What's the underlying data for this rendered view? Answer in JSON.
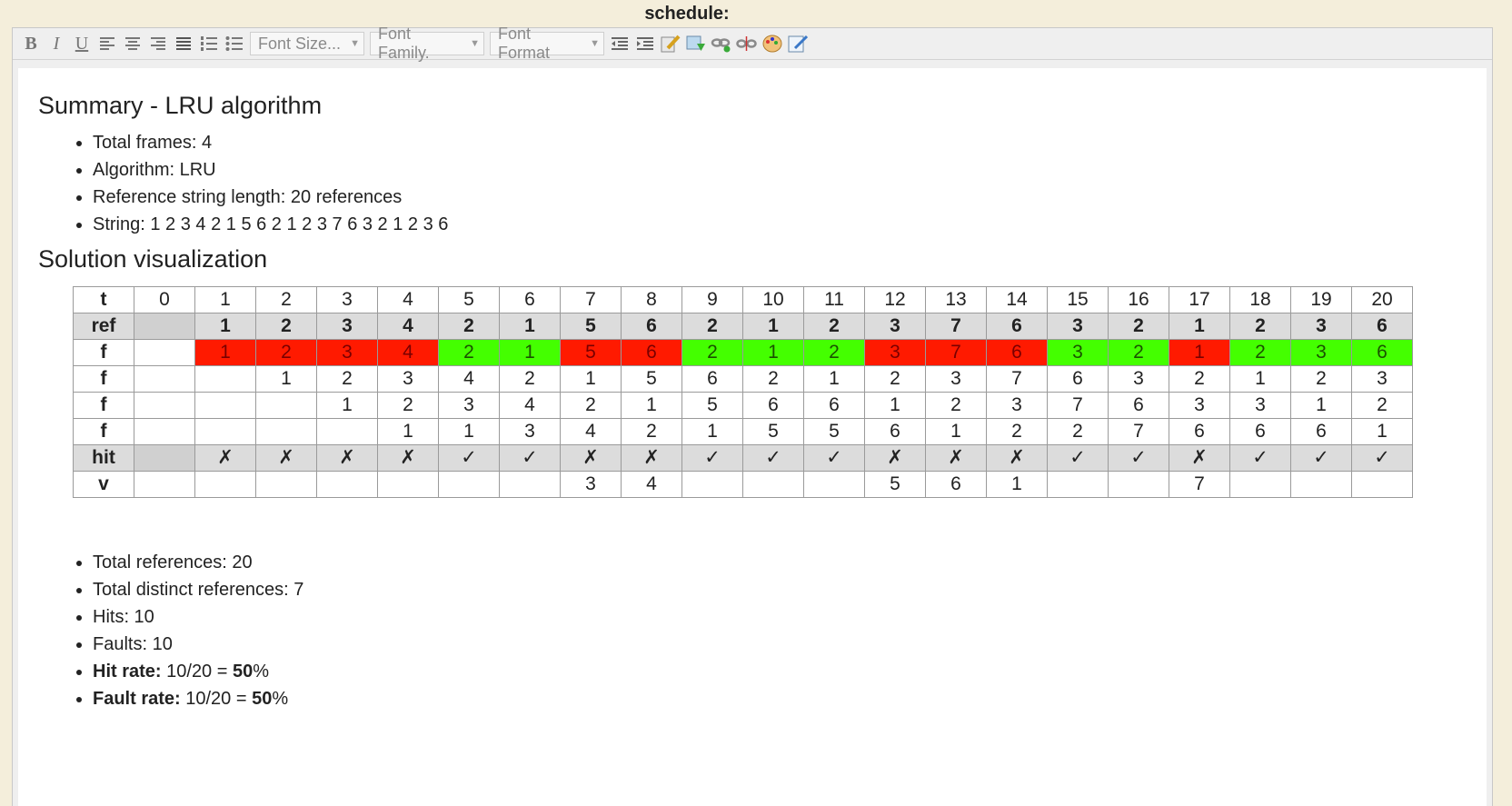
{
  "field": {
    "label": "schedule:"
  },
  "toolbar": {
    "font_size_placeholder": "Font Size...",
    "font_family_placeholder": "Font Family.",
    "font_format_placeholder": "Font Format",
    "buttons": [
      "bold",
      "italic",
      "underline",
      "align-left",
      "align-center",
      "align-right",
      "justify",
      "ordered-list",
      "unordered-list"
    ]
  },
  "summary": {
    "title": "Summary - LRU algorithm",
    "items": [
      "Total frames: 4",
      "Algorithm: LRU",
      "Reference string length:  20 references",
      "String:  1 2 3 4 2 1 5 6 2 1 2 3 7 6 3 2 1 2 3 6"
    ]
  },
  "solution": {
    "title": "Solution visualization",
    "table": {
      "t": {
        "label": "t",
        "cells": [
          "0",
          "1",
          "2",
          "3",
          "4",
          "5",
          "6",
          "7",
          "8",
          "9",
          "10",
          "11",
          "12",
          "13",
          "14",
          "15",
          "16",
          "17",
          "18",
          "19",
          "20"
        ]
      },
      "ref": {
        "label": "ref",
        "cells": [
          "",
          "1",
          "2",
          "3",
          "4",
          "2",
          "1",
          "5",
          "6",
          "2",
          "1",
          "2",
          "3",
          "7",
          "6",
          "3",
          "2",
          "1",
          "2",
          "3",
          "6"
        ]
      },
      "f1": {
        "label": "f",
        "cells": [
          "",
          "1",
          "2",
          "3",
          "4",
          "2",
          "1",
          "5",
          "6",
          "2",
          "1",
          "2",
          "3",
          "7",
          "6",
          "3",
          "2",
          "1",
          "2",
          "3",
          "6"
        ],
        "status": [
          "",
          "fault",
          "fault",
          "fault",
          "fault",
          "hit",
          "hit",
          "fault",
          "fault",
          "hit",
          "hit",
          "hit",
          "fault",
          "fault",
          "fault",
          "hit",
          "hit",
          "fault",
          "hit",
          "hit",
          "hit"
        ]
      },
      "f2": {
        "label": "f",
        "cells": [
          "",
          "",
          "1",
          "2",
          "3",
          "4",
          "2",
          "1",
          "5",
          "6",
          "2",
          "1",
          "2",
          "3",
          "7",
          "6",
          "3",
          "2",
          "1",
          "2",
          "3"
        ]
      },
      "f3": {
        "label": "f",
        "cells": [
          "",
          "",
          "",
          "1",
          "2",
          "3",
          "4",
          "2",
          "1",
          "5",
          "6",
          "6",
          "1",
          "2",
          "3",
          "7",
          "6",
          "3",
          "3",
          "1",
          "2"
        ]
      },
      "f4": {
        "label": "f",
        "cells": [
          "",
          "",
          "",
          "",
          "1",
          "1",
          "3",
          "4",
          "2",
          "1",
          "5",
          "5",
          "6",
          "1",
          "2",
          "2",
          "7",
          "6",
          "6",
          "6",
          "1"
        ]
      },
      "hit": {
        "label": "hit",
        "cells": [
          "",
          "✗",
          "✗",
          "✗",
          "✗",
          "✓",
          "✓",
          "✗",
          "✗",
          "✓",
          "✓",
          "✓",
          "✗",
          "✗",
          "✗",
          "✓",
          "✓",
          "✗",
          "✓",
          "✓",
          "✓"
        ]
      },
      "v": {
        "label": "v",
        "cells": [
          "",
          "",
          "",
          "",
          "",
          "",
          "",
          "3",
          "4",
          "",
          "",
          "",
          "5",
          "6",
          "1",
          "",
          "",
          "7",
          "",
          "",
          ""
        ]
      }
    },
    "colors": {
      "fault": "#ff1a00",
      "hit": "#44ff00"
    }
  },
  "stats": {
    "total_refs": "Total references: 20",
    "distinct_refs": "Total distinct references: 7",
    "hits": "Hits: 10",
    "faults": "Faults: 10",
    "hit_rate_label": "Hit rate:",
    "hit_rate_value": " 10/20 = ",
    "hit_rate_pct": "50",
    "fault_rate_label": "Fault rate:",
    "fault_rate_value": " 10/20 = ",
    "fault_rate_pct": "50",
    "pct_sign": "%"
  }
}
